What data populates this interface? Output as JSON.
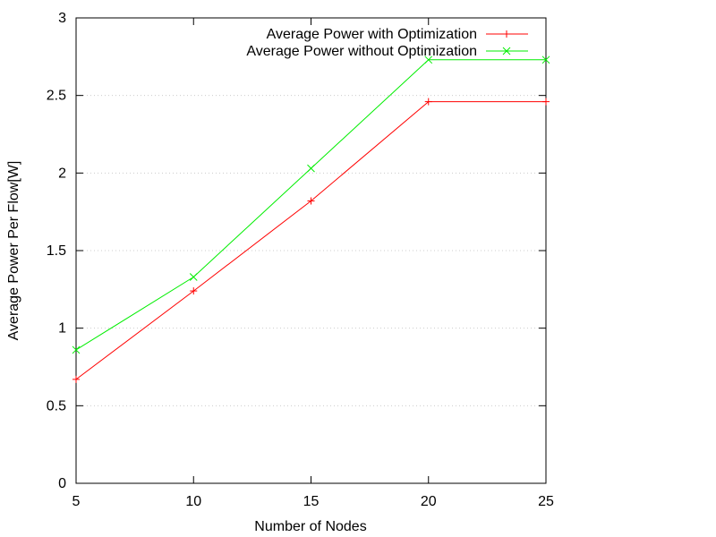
{
  "chart_data": {
    "type": "line",
    "title": "",
    "xlabel": "Number of Nodes",
    "ylabel": "Average Power Per Flow[W]",
    "x": [
      5,
      10,
      15,
      20,
      25
    ],
    "xlim": [
      5,
      25
    ],
    "ylim": [
      0,
      3
    ],
    "x_ticks": [
      "5",
      "10",
      "15",
      "20",
      "25"
    ],
    "y_ticks": [
      "0",
      "0.5",
      "1",
      "1.5",
      "2",
      "2.5",
      "3"
    ],
    "grid": true,
    "legend_position": "top-right",
    "series": [
      {
        "name": "Average Power with Optimization",
        "values": [
          0.67,
          1.24,
          1.82,
          2.46,
          2.46
        ],
        "color": "#ff0000",
        "marker": "plus"
      },
      {
        "name": "Average Power without Optimization",
        "values": [
          0.86,
          1.33,
          2.03,
          2.73,
          2.73
        ],
        "color": "#00ee00",
        "marker": "cross"
      }
    ]
  }
}
